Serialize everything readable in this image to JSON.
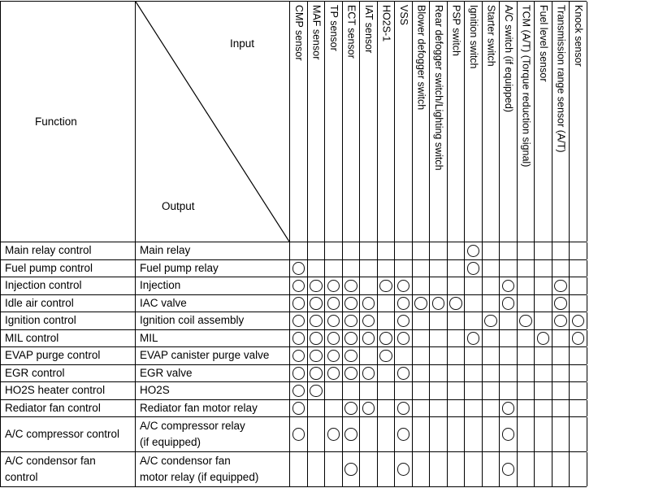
{
  "table": {
    "function_header": "Function",
    "input_label": "Input",
    "output_label": "Output",
    "mark_symbol": "circle-outline",
    "columns": [
      "CMP sensor",
      "MAF sensor",
      "TP sensor",
      "ECT sensor",
      "IAT sensor",
      "HO2S-1",
      "VSS",
      "Blower defogger switch",
      "Rear defogger switch/Lighting switch",
      "PSP switch",
      "Ignition switch",
      "Starter switch",
      "A/C switch (if equipped)",
      "TCM (A/T) (Torque reduction signal)",
      "Fuel level sensor",
      "Transmission range sensor (A/T)",
      "Knock sensor"
    ],
    "rows": [
      {
        "function": "Main relay control",
        "output": "Main relay",
        "marks": [
          10
        ]
      },
      {
        "function": "Fuel pump control",
        "output": "Fuel pump relay",
        "marks": [
          0,
          10
        ]
      },
      {
        "function": "Injection control",
        "output": "Injection",
        "marks": [
          0,
          1,
          2,
          3,
          5,
          6,
          12,
          15
        ]
      },
      {
        "function": "Idle air control",
        "output": "IAC valve",
        "marks": [
          0,
          1,
          2,
          3,
          4,
          6,
          7,
          8,
          9,
          12,
          15
        ]
      },
      {
        "function": "Ignition control",
        "output": "Ignition coil assembly",
        "marks": [
          0,
          1,
          2,
          3,
          4,
          6,
          11,
          13,
          15,
          16
        ]
      },
      {
        "function": "MIL control",
        "output": "MIL",
        "marks": [
          0,
          1,
          2,
          3,
          4,
          5,
          6,
          10,
          14,
          16
        ]
      },
      {
        "function": "EVAP purge control",
        "output": "EVAP canister purge valve",
        "marks": [
          0,
          1,
          2,
          3,
          5
        ]
      },
      {
        "function": "EGR control",
        "output": "EGR valve",
        "marks": [
          0,
          1,
          2,
          3,
          4,
          6
        ]
      },
      {
        "function": "HO2S heater control",
        "output": "HO2S",
        "marks": [
          0,
          1
        ]
      },
      {
        "function": "Rediator fan control",
        "output": "Rediator fan motor relay",
        "marks": [
          0,
          3,
          4,
          6,
          12
        ]
      },
      {
        "function": "A/C compressor control",
        "output": "A/C compressor relay\n(if equipped)",
        "marks": [
          0,
          2,
          3,
          6,
          12
        ]
      },
      {
        "function": "A/C condensor fan\ncontrol",
        "output": "A/C condensor fan\nmotor relay (if equipped)",
        "marks": [
          3,
          6,
          12
        ]
      }
    ]
  },
  "colors": {
    "line": "#000000",
    "text": "#000000",
    "background": "#ffffff"
  }
}
